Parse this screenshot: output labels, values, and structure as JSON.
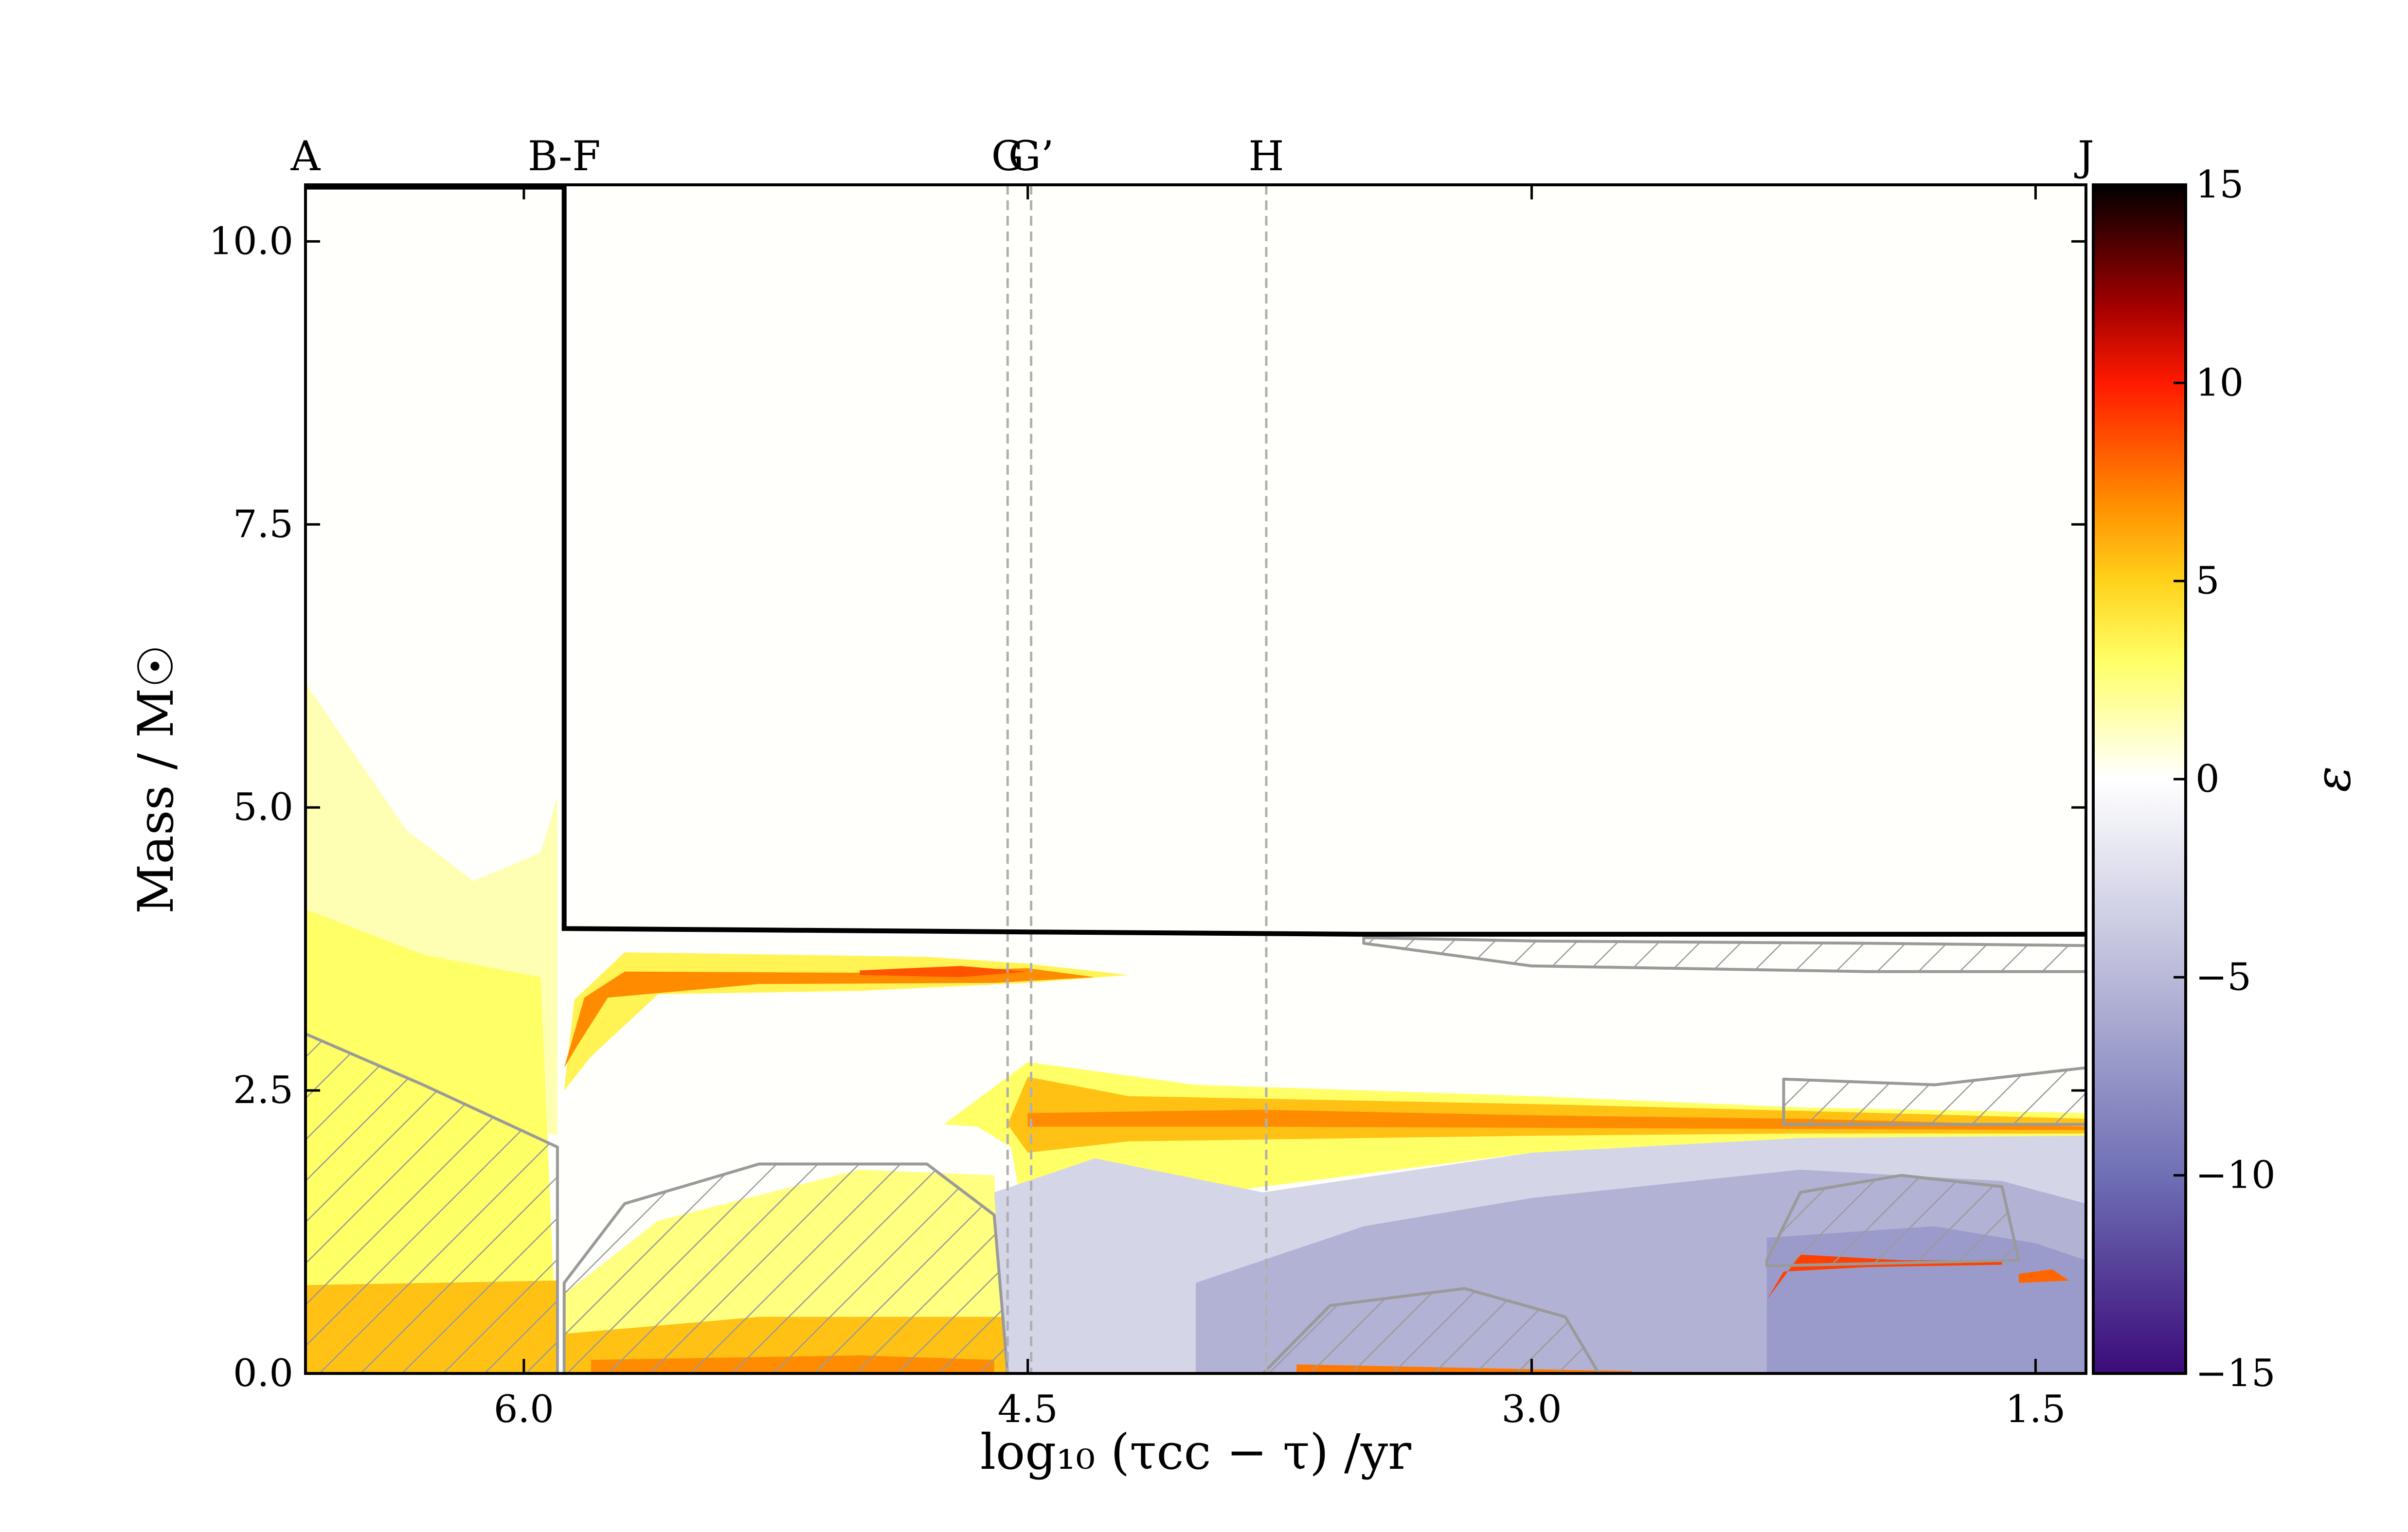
{
  "chart_data": {
    "type": "heatmap",
    "title": "",
    "xlabel": "log₁₀ (τcc − τ) /yr",
    "ylabel": "Mass / M☉",
    "colorbar_label": "ε",
    "xlim": [
      6.65,
      1.35
    ],
    "ylim": [
      0.0,
      10.5
    ],
    "x_ticks": [
      6.0,
      4.5,
      3.0,
      1.5
    ],
    "x_tick_labels": [
      "6.0",
      "4.5",
      "3.0",
      "1.5"
    ],
    "y_ticks": [
      0.0,
      2.5,
      5.0,
      7.5,
      10.0
    ],
    "y_tick_labels": [
      "0.0",
      "2.5",
      "5.0",
      "7.5",
      "10.0"
    ],
    "colorbar": {
      "range": [
        -15,
        15
      ],
      "ticks": [
        15,
        10,
        5,
        0,
        -5,
        -10,
        -15
      ],
      "tick_labels": [
        "15",
        "10",
        "5",
        "0",
        "−5",
        "−10",
        "−15"
      ],
      "stops": [
        {
          "v": -15,
          "color": "#3b0b7a"
        },
        {
          "v": -10,
          "color": "#6f6fb5"
        },
        {
          "v": -5,
          "color": "#b9b9d9"
        },
        {
          "v": 0,
          "color": "#ffffff"
        },
        {
          "v": 3,
          "color": "#ffff66"
        },
        {
          "v": 5,
          "color": "#ffd21a"
        },
        {
          "v": 7,
          "color": "#ff8c00"
        },
        {
          "v": 10,
          "color": "#ff1a00"
        },
        {
          "v": 12,
          "color": "#a00000"
        },
        {
          "v": 15,
          "color": "#000000"
        }
      ]
    },
    "phase_markers": [
      {
        "label": "A",
        "x": 6.65,
        "line": false
      },
      {
        "label": "B-F",
        "x": 5.88,
        "line": false
      },
      {
        "label": "G",
        "x": 4.56,
        "line": true
      },
      {
        "label": "G’",
        "x": 4.49,
        "line": true
      },
      {
        "label": "H",
        "x": 3.79,
        "line": true
      },
      {
        "label": "J",
        "x": 1.35,
        "line": false
      }
    ],
    "total_mass_line": [
      [
        6.65,
        10.48
      ],
      [
        5.88,
        10.48
      ],
      [
        5.88,
        3.93
      ],
      [
        4.5,
        3.9
      ],
      [
        3.5,
        3.88
      ],
      [
        1.35,
        3.88
      ]
    ],
    "regions": [
      {
        "name": "envelope-burning-pale",
        "epsilon": 1.5,
        "polygon": [
          [
            6.65,
            6.1
          ],
          [
            6.35,
            4.8
          ],
          [
            6.15,
            4.35
          ],
          [
            5.95,
            4.6
          ],
          [
            5.9,
            5.1
          ],
          [
            5.9,
            2.1
          ],
          [
            6.65,
            2.6
          ]
        ]
      },
      {
        "name": "envelope-burning-yellow",
        "epsilon": 3.0,
        "polygon": [
          [
            6.65,
            4.1
          ],
          [
            6.3,
            3.7
          ],
          [
            5.95,
            3.5
          ],
          [
            5.9,
            0.0
          ],
          [
            6.65,
            0.0
          ]
        ]
      },
      {
        "name": "core-burning-early",
        "epsilon": 5.5,
        "polygon": [
          [
            6.65,
            0.78
          ],
          [
            5.9,
            0.82
          ],
          [
            5.9,
            0.0
          ],
          [
            6.65,
            0.0
          ]
        ]
      },
      {
        "name": "shell-upper-halo",
        "epsilon": 3.5,
        "polygon": [
          [
            5.88,
            2.5
          ],
          [
            5.85,
            3.3
          ],
          [
            5.7,
            3.72
          ],
          [
            4.8,
            3.68
          ],
          [
            4.5,
            3.62
          ],
          [
            4.2,
            3.52
          ],
          [
            4.5,
            3.45
          ],
          [
            5.0,
            3.38
          ],
          [
            5.6,
            3.35
          ],
          [
            5.8,
            2.8
          ]
        ]
      },
      {
        "name": "shell-upper-core",
        "epsilon": 7.0,
        "polygon": [
          [
            5.88,
            2.7
          ],
          [
            5.82,
            3.32
          ],
          [
            5.7,
            3.55
          ],
          [
            5.0,
            3.54
          ],
          [
            4.5,
            3.58
          ],
          [
            4.3,
            3.5
          ],
          [
            4.6,
            3.45
          ],
          [
            5.3,
            3.44
          ],
          [
            5.75,
            3.32
          ],
          [
            5.84,
            2.9
          ]
        ]
      },
      {
        "name": "shell-upper-peak",
        "epsilon": 8.5,
        "polygon": [
          [
            5.0,
            3.56
          ],
          [
            4.7,
            3.6
          ],
          [
            4.5,
            3.55
          ],
          [
            4.7,
            3.5
          ],
          [
            5.0,
            3.52
          ]
        ]
      },
      {
        "name": "core-burning-mid",
        "epsilon": 2.5,
        "polygon": [
          [
            5.88,
            0.7
          ],
          [
            5.6,
            1.35
          ],
          [
            5.0,
            1.8
          ],
          [
            4.6,
            1.75
          ],
          [
            4.56,
            0.0
          ],
          [
            5.88,
            0.0
          ]
        ]
      },
      {
        "name": "core-burning-mid-hot",
        "epsilon": 5.5,
        "polygon": [
          [
            5.88,
            0.35
          ],
          [
            5.3,
            0.5
          ],
          [
            4.57,
            0.5
          ],
          [
            4.56,
            0.0
          ],
          [
            5.88,
            0.0
          ]
        ]
      },
      {
        "name": "core-burning-mid-peak",
        "epsilon": 7.0,
        "polygon": [
          [
            5.8,
            0.12
          ],
          [
            5.0,
            0.16
          ],
          [
            4.6,
            0.12
          ],
          [
            4.6,
            0.0
          ],
          [
            5.8,
            0.0
          ]
        ]
      },
      {
        "name": "shell-lower-halo",
        "epsilon": 3.0,
        "polygon": [
          [
            4.75,
            2.2
          ],
          [
            4.5,
            2.75
          ],
          [
            4.0,
            2.55
          ],
          [
            3.0,
            2.45
          ],
          [
            2.2,
            2.35
          ],
          [
            1.35,
            2.3
          ],
          [
            1.35,
            2.1
          ],
          [
            2.2,
            2.08
          ],
          [
            3.0,
            1.95
          ],
          [
            3.8,
            1.65
          ],
          [
            4.4,
            1.4
          ],
          [
            4.5,
            1.2
          ],
          [
            4.55,
            2.0
          ],
          [
            4.65,
            2.18
          ]
        ]
      },
      {
        "name": "shell-lower-core",
        "epsilon": 5.5,
        "polygon": [
          [
            4.56,
            2.2
          ],
          [
            4.5,
            2.62
          ],
          [
            4.2,
            2.45
          ],
          [
            3.0,
            2.38
          ],
          [
            2.2,
            2.32
          ],
          [
            1.35,
            2.25
          ],
          [
            1.35,
            2.12
          ],
          [
            2.2,
            2.12
          ],
          [
            3.0,
            2.1
          ],
          [
            4.2,
            2.05
          ],
          [
            4.5,
            1.95
          ]
        ]
      },
      {
        "name": "shell-lower-peak",
        "epsilon": 7.0,
        "polygon": [
          [
            4.5,
            2.3
          ],
          [
            3.8,
            2.33
          ],
          [
            3.0,
            2.28
          ],
          [
            2.2,
            2.25
          ],
          [
            1.8,
            2.22
          ],
          [
            1.35,
            2.18
          ],
          [
            1.35,
            2.15
          ],
          [
            2.2,
            2.16
          ],
          [
            3.0,
            2.17
          ],
          [
            3.8,
            2.18
          ],
          [
            4.5,
            2.18
          ]
        ]
      },
      {
        "name": "cooling-core-light",
        "epsilon": -3.0,
        "polygon": [
          [
            4.6,
            1.6
          ],
          [
            4.3,
            1.9
          ],
          [
            3.8,
            1.6
          ],
          [
            3.0,
            1.95
          ],
          [
            2.2,
            2.08
          ],
          [
            1.35,
            2.1
          ],
          [
            1.35,
            0.0
          ],
          [
            4.56,
            0.0
          ]
        ]
      },
      {
        "name": "cooling-core-mid",
        "epsilon": -5.5,
        "polygon": [
          [
            4.0,
            0.8
          ],
          [
            3.5,
            1.3
          ],
          [
            3.0,
            1.55
          ],
          [
            2.2,
            1.8
          ],
          [
            1.6,
            1.7
          ],
          [
            1.35,
            1.5
          ],
          [
            1.35,
            0.0
          ],
          [
            4.0,
            0.0
          ]
        ]
      },
      {
        "name": "cooling-core-deep",
        "epsilon": -7.0,
        "polygon": [
          [
            2.3,
            0.0
          ],
          [
            2.3,
            1.2
          ],
          [
            1.8,
            1.3
          ],
          [
            1.5,
            1.15
          ],
          [
            1.35,
            1.0
          ],
          [
            1.35,
            0.0
          ]
        ]
      },
      {
        "name": "core-burning-late",
        "epsilon": 7.5,
        "polygon": [
          [
            3.7,
            0.08
          ],
          [
            3.2,
            0.05
          ],
          [
            2.7,
            0.02
          ],
          [
            2.7,
            0.0
          ],
          [
            3.7,
            0.0
          ]
        ]
      },
      {
        "name": "shell-deep-flash",
        "epsilon": 9.0,
        "polygon": [
          [
            2.3,
            0.65
          ],
          [
            2.2,
            1.05
          ],
          [
            1.9,
            1.0
          ],
          [
            1.6,
            1.0
          ],
          [
            1.6,
            0.96
          ],
          [
            2.0,
            0.94
          ],
          [
            2.25,
            0.9
          ]
        ]
      },
      {
        "name": "shell-deep-blob",
        "epsilon": 8.0,
        "polygon": [
          [
            1.55,
            0.88
          ],
          [
            1.45,
            0.92
          ],
          [
            1.4,
            0.82
          ],
          [
            1.55,
            0.8
          ]
        ]
      }
    ],
    "convective_zones": [
      {
        "name": "zone-early",
        "boundary": [
          [
            6.65,
            3.0
          ],
          [
            6.3,
            2.55
          ],
          [
            5.9,
            2.0
          ],
          [
            5.9,
            0.0
          ],
          [
            6.65,
            0.0
          ]
        ]
      },
      {
        "name": "zone-core-mid",
        "boundary": [
          [
            5.88,
            0.8
          ],
          [
            5.7,
            1.5
          ],
          [
            5.3,
            1.85
          ],
          [
            4.8,
            1.85
          ],
          [
            4.6,
            1.4
          ],
          [
            4.56,
            0.0
          ],
          [
            5.88,
            0.0
          ]
        ]
      },
      {
        "name": "zone-shell-top",
        "boundary": [
          [
            3.5,
            3.85
          ],
          [
            3.0,
            3.82
          ],
          [
            2.0,
            3.8
          ],
          [
            1.35,
            3.78
          ],
          [
            1.35,
            3.55
          ],
          [
            2.0,
            3.55
          ],
          [
            3.0,
            3.6
          ],
          [
            3.5,
            3.8
          ]
        ]
      },
      {
        "name": "zone-shell-late",
        "boundary": [
          [
            2.25,
            2.6
          ],
          [
            1.8,
            2.55
          ],
          [
            1.35,
            2.7
          ],
          [
            1.35,
            2.2
          ],
          [
            2.25,
            2.2
          ]
        ]
      },
      {
        "name": "zone-shell-deep",
        "boundary": [
          [
            2.3,
            1.0
          ],
          [
            2.2,
            1.6
          ],
          [
            1.9,
            1.75
          ],
          [
            1.6,
            1.65
          ],
          [
            1.55,
            1.0
          ],
          [
            2.3,
            0.95
          ]
        ]
      },
      {
        "name": "zone-core-late",
        "boundary": [
          [
            3.8,
            0.0
          ],
          [
            3.6,
            0.6
          ],
          [
            3.2,
            0.75
          ],
          [
            2.9,
            0.5
          ],
          [
            2.8,
            0.0
          ]
        ]
      }
    ]
  }
}
